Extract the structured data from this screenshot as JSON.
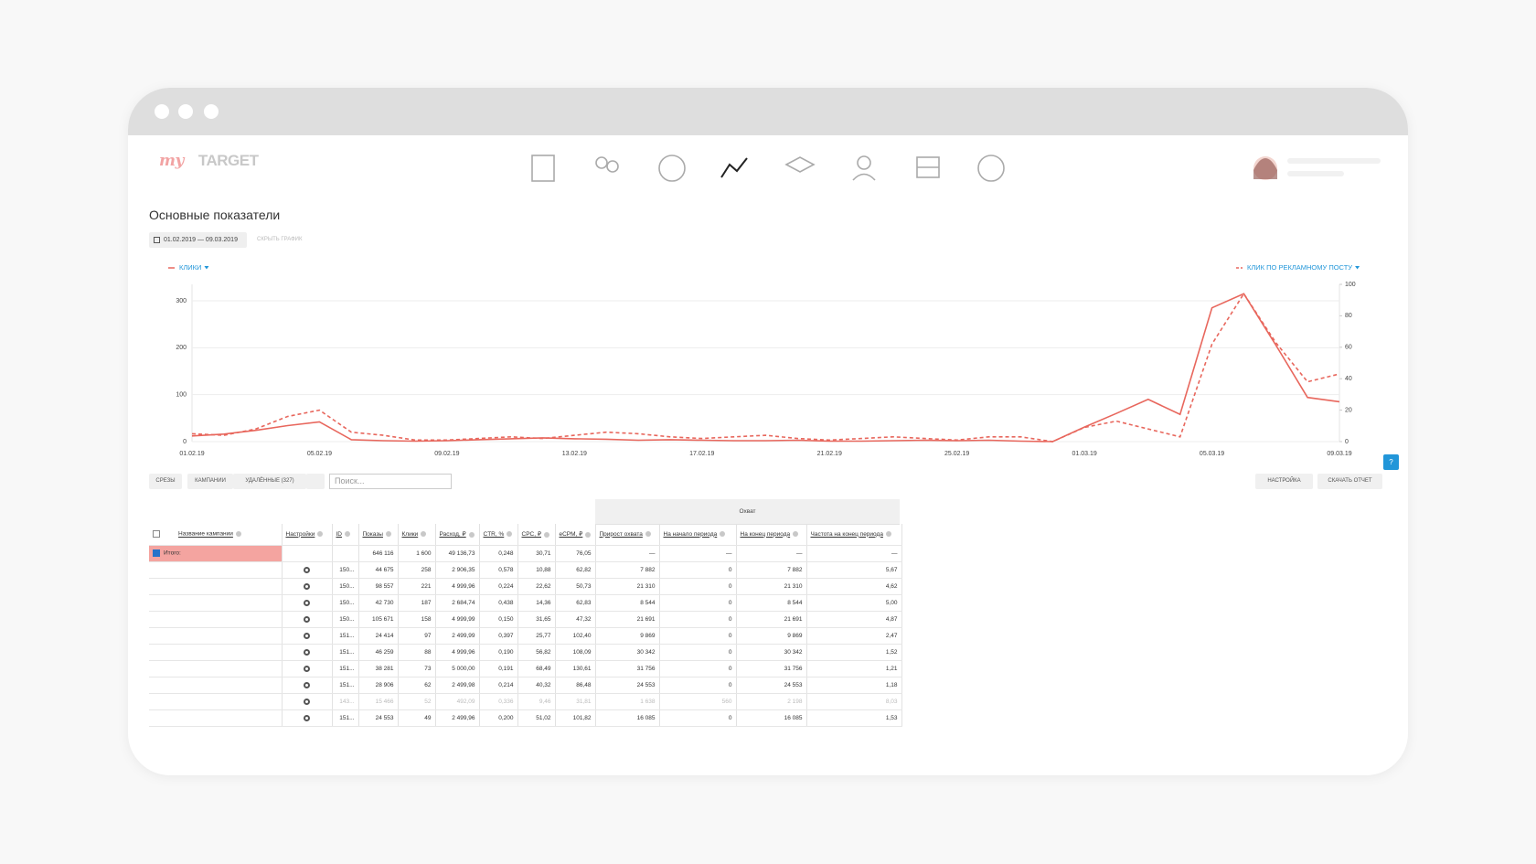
{
  "header": {
    "logo_my": "my",
    "logo_target": "TARGET"
  },
  "page": {
    "title": "Основные показатели",
    "date_range": "01.02.2019 — 09.03.2019",
    "hide_chart": "СКРЫТЬ ГРАФИК"
  },
  "chart_data": {
    "type": "line",
    "categories": [
      "01.02.19",
      null,
      null,
      null,
      "05.02.19",
      null,
      null,
      null,
      "09.02.19",
      null,
      null,
      null,
      "13.02.19",
      null,
      null,
      null,
      "17.02.19",
      null,
      null,
      null,
      "21.02.19",
      null,
      null,
      null,
      "25.02.19",
      null,
      null,
      null,
      "01.03.19",
      null,
      null,
      null,
      "05.03.19",
      null,
      null,
      null,
      "09.03.19"
    ],
    "series": [
      {
        "name": "КЛИКИ",
        "color": "#e8675d",
        "line_style": "solid",
        "axis": "y",
        "values": [
          12,
          16,
          24,
          34,
          42,
          4,
          2,
          1,
          2,
          4,
          6,
          8,
          6,
          5,
          3,
          4,
          3,
          2,
          2,
          3,
          1,
          1,
          2,
          3,
          2,
          3,
          1,
          0,
          31,
          60,
          90,
          58,
          285,
          315,
          206,
          94,
          85
        ]
      },
      {
        "name": "КЛИК ПО РЕКЛАМНОМУ ПОСТУ",
        "color": "#e8675d",
        "line_style": "dashed",
        "axis": "y2",
        "values": [
          5,
          4,
          8,
          16,
          20,
          6,
          4,
          1,
          1,
          2,
          3,
          2,
          4,
          6,
          5,
          3,
          2,
          3,
          4,
          2,
          1,
          2,
          3,
          2,
          1,
          3,
          3,
          0,
          9,
          13,
          8,
          3,
          62,
          94,
          63,
          38,
          43
        ]
      }
    ],
    "ylim": [
      0,
      335
    ],
    "yticks": [
      0,
      100,
      200,
      300
    ],
    "y2lim": [
      0,
      100
    ],
    "y2ticks": [
      0,
      20,
      40,
      60,
      80,
      100
    ],
    "grid": true
  },
  "toolbar": {
    "slices": "СРЕЗЫ",
    "campaigns": "КАМПАНИИ",
    "deleted": "УДАЛЁННЫЕ (327)",
    "search_placeholder": "Поиск...",
    "settings": "НАСТРОЙКА",
    "download": "СКАЧАТЬ ОТЧЕТ",
    "help": "?"
  },
  "table": {
    "group_header": "Охват",
    "columns": [
      "Название кампании",
      "Настройки",
      "ID",
      "Показы",
      "Клики",
      "Расход, ₽",
      "CTR, %",
      "CPC, ₽",
      "eCPM, ₽",
      "Прирост охвата",
      "На начало периода",
      "На конец периода",
      "Частота на конец периода"
    ],
    "total": {
      "label": "Итого:",
      "values": [
        "646 116",
        "1 600",
        "49 136,73",
        "0,248",
        "30,71",
        "76,05",
        "—",
        "—",
        "—",
        "—"
      ]
    },
    "rows": [
      [
        "150...",
        "44 675",
        "258",
        "2 906,35",
        "0,578",
        "10,88",
        "62,82",
        "7 882",
        "0",
        "7 882",
        "5,67"
      ],
      [
        "150...",
        "98 557",
        "221",
        "4 999,96",
        "0,224",
        "22,62",
        "50,73",
        "21 310",
        "0",
        "21 310",
        "4,62"
      ],
      [
        "150...",
        "42 730",
        "187",
        "2 684,74",
        "0,438",
        "14,36",
        "62,83",
        "8 544",
        "0",
        "8 544",
        "5,00"
      ],
      [
        "150...",
        "105 671",
        "158",
        "4 999,99",
        "0,150",
        "31,65",
        "47,32",
        "21 691",
        "0",
        "21 691",
        "4,87"
      ],
      [
        "151...",
        "24 414",
        "97",
        "2 499,99",
        "0,397",
        "25,77",
        "102,40",
        "9 869",
        "0",
        "9 869",
        "2,47"
      ],
      [
        "151...",
        "46 259",
        "88",
        "4 999,96",
        "0,190",
        "56,82",
        "108,09",
        "30 342",
        "0",
        "30 342",
        "1,52"
      ],
      [
        "151...",
        "38 281",
        "73",
        "5 000,00",
        "0,191",
        "68,49",
        "130,61",
        "31 756",
        "0",
        "31 756",
        "1,21"
      ],
      [
        "151...",
        "28 906",
        "62",
        "2 499,98",
        "0,214",
        "40,32",
        "86,48",
        "24 553",
        "0",
        "24 553",
        "1,18"
      ],
      [
        "143...",
        "15 466",
        "52",
        "492,09",
        "0,336",
        "9,46",
        "31,81",
        "1 638",
        "560",
        "2 198",
        "8,03"
      ],
      [
        "151...",
        "24 553",
        "49",
        "2 499,96",
        "0,200",
        "51,02",
        "101,82",
        "16 085",
        "0",
        "16 085",
        "1,53"
      ]
    ]
  }
}
